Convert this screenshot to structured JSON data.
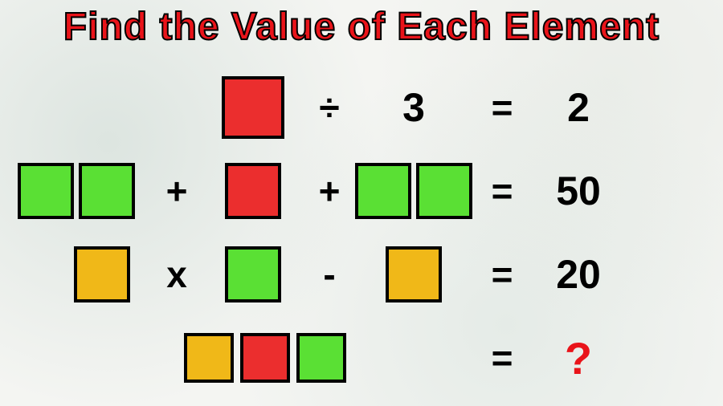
{
  "title": "Find the Value of Each Element",
  "colors": {
    "red": "#eb2e2e",
    "green": "#5ae034",
    "orange": "#f0b818",
    "title_text": "#e9141a",
    "stroke": "#000000",
    "qmark": "#e9141a"
  },
  "sizes": {
    "large_square": 78,
    "medium_square": 70,
    "small_square": 62,
    "border": 4
  },
  "rows": [
    {
      "cells": [
        {
          "type": "empty"
        },
        {
          "type": "empty"
        },
        {
          "type": "square",
          "color": "red",
          "size": "large_square"
        },
        {
          "type": "op",
          "text": "÷"
        },
        {
          "type": "num",
          "text": "3"
        },
        {
          "type": "op",
          "text": "="
        },
        {
          "type": "num",
          "text": "2"
        }
      ]
    },
    {
      "cells": [
        {
          "type": "pair",
          "color": "green",
          "size": "medium_square"
        },
        {
          "type": "op",
          "text": "+"
        },
        {
          "type": "square",
          "color": "red",
          "size": "medium_square"
        },
        {
          "type": "op",
          "text": "+"
        },
        {
          "type": "pair",
          "color": "green",
          "size": "medium_square"
        },
        {
          "type": "op",
          "text": "="
        },
        {
          "type": "num",
          "text": "50"
        }
      ]
    },
    {
      "cells": [
        {
          "type": "square",
          "color": "orange",
          "size": "medium_square",
          "align": "right"
        },
        {
          "type": "op",
          "text": "x"
        },
        {
          "type": "square",
          "color": "green",
          "size": "medium_square"
        },
        {
          "type": "op",
          "text": "-"
        },
        {
          "type": "square",
          "color": "orange",
          "size": "medium_square"
        },
        {
          "type": "op",
          "text": "="
        },
        {
          "type": "num",
          "text": "20"
        }
      ]
    },
    {
      "cells": [
        {
          "type": "triple",
          "colors": [
            "orange",
            "red",
            "green"
          ],
          "size": "small_square",
          "span": 5
        },
        {
          "type": "op",
          "text": "="
        },
        {
          "type": "qmark",
          "text": "?"
        }
      ]
    }
  ]
}
